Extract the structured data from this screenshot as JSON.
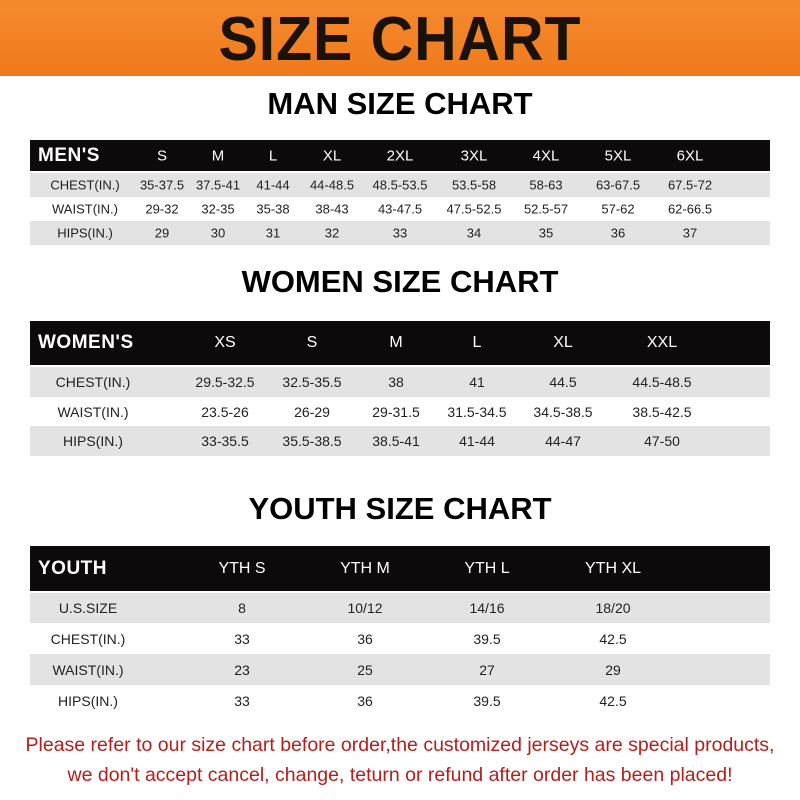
{
  "banner": {
    "title": "SIZE CHART",
    "color": "#f08020"
  },
  "men": {
    "title": "MAN SIZE CHART",
    "header": [
      "MEN'S",
      "S",
      "M",
      "L",
      "XL",
      "2XL",
      "3XL",
      "4XL",
      "5XL",
      "6XL"
    ],
    "rows": [
      [
        "CHEST(IN.)",
        "35-37.5",
        "37.5-41",
        "41-44",
        "44-48.5",
        "48.5-53.5",
        "53.5-58",
        "58-63",
        "63-67.5",
        "67.5-72"
      ],
      [
        "WAIST(IN.)",
        "29-32",
        "32-35",
        "35-38",
        "38-43",
        "43-47.5",
        "47.5-52.5",
        "52.5-57",
        "57-62",
        "62-66.5"
      ],
      [
        "HIPS(IN.)",
        "29",
        "30",
        "31",
        "32",
        "33",
        "34",
        "35",
        "36",
        "37"
      ]
    ]
  },
  "women": {
    "title": "WOMEN SIZE CHART",
    "header": [
      "WOMEN'S",
      "XS",
      "S",
      "M",
      "L",
      "XL",
      "XXL"
    ],
    "rows": [
      [
        "CHEST(IN.)",
        "29.5-32.5",
        "32.5-35.5",
        "38",
        "41",
        "44.5",
        "44.5-48.5"
      ],
      [
        "WAIST(IN.)",
        "23.5-26",
        "26-29",
        "29-31.5",
        "31.5-34.5",
        "34.5-38.5",
        "38.5-42.5"
      ],
      [
        "HIPS(IN.)",
        "33-35.5",
        "35.5-38.5",
        "38.5-41",
        "41-44",
        "44-47",
        "47-50"
      ]
    ]
  },
  "youth": {
    "title": "YOUTH SIZE CHART",
    "header": [
      "YOUTH",
      "YTH S",
      "YTH M",
      "YTH L",
      "YTH XL"
    ],
    "rows": [
      [
        "U.S.SIZE",
        "8",
        "10/12",
        "14/16",
        "18/20"
      ],
      [
        "CHEST(IN.)",
        "33",
        "36",
        "39.5",
        "42.5"
      ],
      [
        "WAIST(IN.)",
        "23",
        "25",
        "27",
        "29"
      ],
      [
        "HIPS(IN.)",
        "33",
        "36",
        "39.5",
        "42.5"
      ]
    ]
  },
  "note": {
    "line1": "Please refer to our size chart before order,the customized jerseys are special products,",
    "line2": "we don't accept cancel, change, teturn or refund after order has been placed!",
    "color": "#b2201e"
  }
}
